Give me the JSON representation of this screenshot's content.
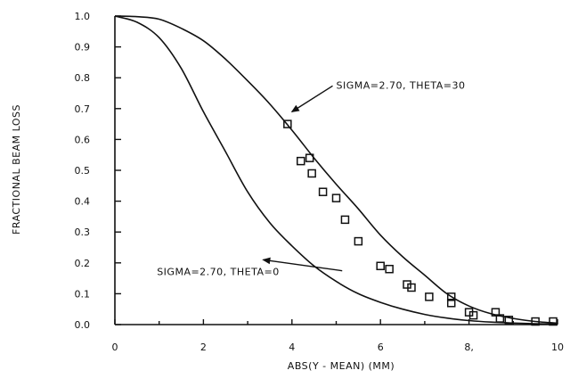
{
  "chart_data": {
    "type": "line",
    "xlabel": "ABS(Y - MEAN)    (MM)",
    "ylabel": "FRACTIONAL BEAM LOSS",
    "xlim": [
      0,
      10
    ],
    "ylim": [
      0.0,
      1.0
    ],
    "x_ticks": [
      0,
      2,
      4,
      6,
      8,
      10
    ],
    "x_tick_labels": [
      "0",
      "2",
      "4",
      "6",
      "8,",
      "10"
    ],
    "y_ticks": [
      0.0,
      0.1,
      0.2,
      0.3,
      0.4,
      0.5,
      0.6,
      0.7,
      0.8,
      0.9,
      1.0
    ],
    "y_tick_labels": [
      "0.0",
      "0.1",
      "0.2",
      "0.3",
      "0.4",
      "0.5",
      "0.6",
      "0.7",
      "0.8",
      "0.9",
      "1.0"
    ],
    "grid": false,
    "series": [
      {
        "name": "SIGMA=2.70, THETA=30",
        "kind": "curve",
        "x": [
          0,
          0.5,
          1,
          1.5,
          2,
          2.5,
          3,
          3.5,
          4,
          4.5,
          5,
          5.5,
          6,
          6.5,
          7,
          7.5,
          8,
          8.5,
          9,
          9.5,
          10
        ],
        "y": [
          1.0,
          0.998,
          0.99,
          0.96,
          0.92,
          0.86,
          0.79,
          0.715,
          0.63,
          0.54,
          0.455,
          0.375,
          0.29,
          0.22,
          0.16,
          0.1,
          0.06,
          0.035,
          0.02,
          0.01,
          0.005
        ]
      },
      {
        "name": "SIGMA=2.70, THETA=0",
        "kind": "curve",
        "x": [
          0,
          0.5,
          1,
          1.5,
          2,
          2.5,
          3,
          3.5,
          4,
          4.5,
          5,
          5.5,
          6,
          6.5,
          7,
          7.5,
          8,
          8.5,
          9,
          9.5,
          10
        ],
        "y": [
          1.0,
          0.98,
          0.93,
          0.83,
          0.69,
          0.56,
          0.43,
          0.33,
          0.255,
          0.19,
          0.14,
          0.1,
          0.072,
          0.05,
          0.033,
          0.021,
          0.013,
          0.008,
          0.005,
          0.003,
          0.002
        ]
      },
      {
        "name": "",
        "kind": "points",
        "x": [
          3.9,
          4.2,
          4.4,
          4.45,
          4.7,
          5.0,
          5.2,
          5.5,
          6.0,
          6.2,
          6.6,
          6.7,
          7.1,
          7.6,
          7.6,
          8.0,
          8.1,
          8.6,
          8.7,
          8.9,
          9.5,
          9.9
        ],
        "y": [
          0.65,
          0.53,
          0.54,
          0.49,
          0.43,
          0.41,
          0.34,
          0.27,
          0.19,
          0.18,
          0.13,
          0.12,
          0.09,
          0.09,
          0.07,
          0.04,
          0.03,
          0.04,
          0.02,
          0.015,
          0.01,
          0.01
        ]
      }
    ],
    "annotations": [
      {
        "text": "SIGMA=2.70, THETA=30",
        "x": 5.0,
        "y": 0.765,
        "arrow_to": [
          4.0,
          0.69
        ]
      },
      {
        "text": "SIGMA=2.70, THETA=0",
        "x": 0.95,
        "y": 0.16,
        "arrow_to": [
          3.35,
          0.21
        ]
      }
    ]
  }
}
